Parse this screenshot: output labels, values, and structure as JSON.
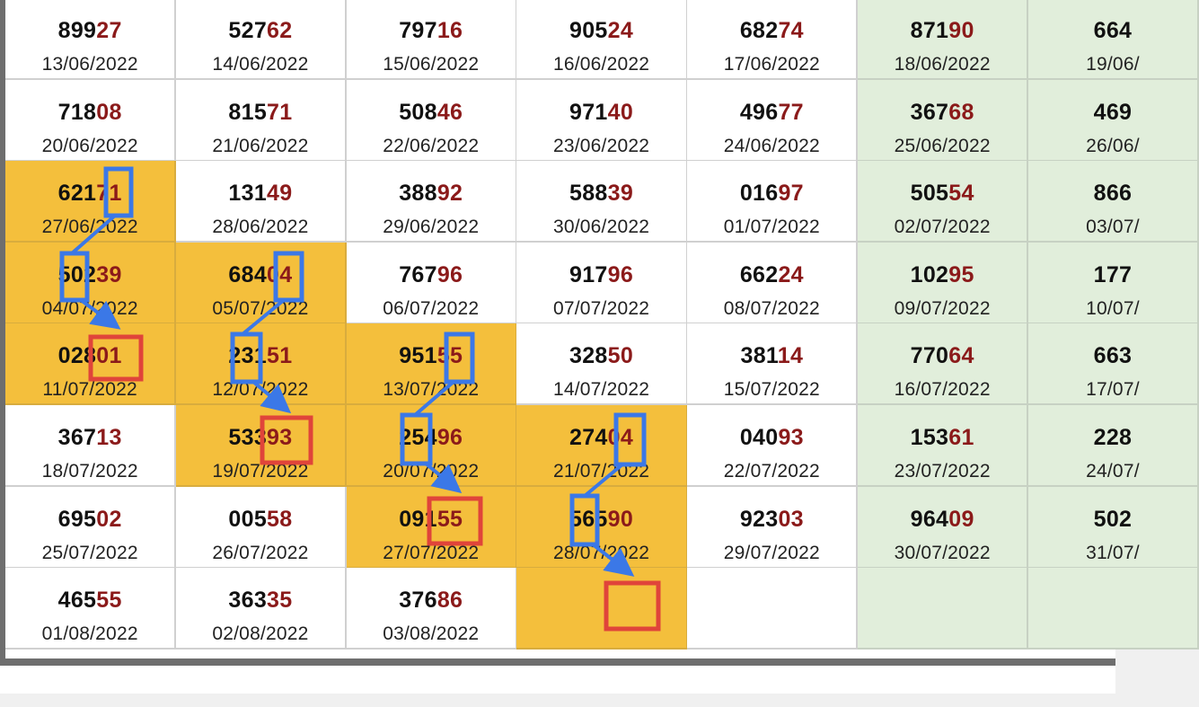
{
  "colors": {
    "highlight": "#f4bf3c",
    "weekend_column": "#e1eedb",
    "tail_digits": "#8b1a1a",
    "marker_blue": "#3b78e7",
    "marker_red": "#e0443a"
  },
  "grid": {
    "rows": [
      [
        {
          "head": "899",
          "tail": "27",
          "date": "13/06/2022",
          "hl": false
        },
        {
          "head": "527",
          "tail": "62",
          "date": "14/06/2022",
          "hl": false
        },
        {
          "head": "797",
          "tail": "16",
          "date": "15/06/2022",
          "hl": false
        },
        {
          "head": "905",
          "tail": "24",
          "date": "16/06/2022",
          "hl": false
        },
        {
          "head": "682",
          "tail": "74",
          "date": "17/06/2022",
          "hl": false
        },
        {
          "head": "871",
          "tail": "90",
          "date": "18/06/2022",
          "hl": false
        },
        {
          "head": "664",
          "tail": "",
          "date": "19/06/",
          "hl": false
        }
      ],
      [
        {
          "head": "718",
          "tail": "08",
          "date": "20/06/2022",
          "hl": false
        },
        {
          "head": "815",
          "tail": "71",
          "date": "21/06/2022",
          "hl": false
        },
        {
          "head": "508",
          "tail": "46",
          "date": "22/06/2022",
          "hl": false
        },
        {
          "head": "971",
          "tail": "40",
          "date": "23/06/2022",
          "hl": false
        },
        {
          "head": "496",
          "tail": "77",
          "date": "24/06/2022",
          "hl": false
        },
        {
          "head": "367",
          "tail": "68",
          "date": "25/06/2022",
          "hl": false
        },
        {
          "head": "469",
          "tail": "",
          "date": "26/06/",
          "hl": false
        }
      ],
      [
        {
          "head": "621",
          "tail": "71",
          "date": "27/06/2022",
          "hl": true
        },
        {
          "head": "131",
          "tail": "49",
          "date": "28/06/2022",
          "hl": false
        },
        {
          "head": "388",
          "tail": "92",
          "date": "29/06/2022",
          "hl": false
        },
        {
          "head": "588",
          "tail": "39",
          "date": "30/06/2022",
          "hl": false
        },
        {
          "head": "016",
          "tail": "97",
          "date": "01/07/2022",
          "hl": false
        },
        {
          "head": "505",
          "tail": "54",
          "date": "02/07/2022",
          "hl": false
        },
        {
          "head": "866",
          "tail": "",
          "date": "03/07/",
          "hl": false
        }
      ],
      [
        {
          "head": "502",
          "tail": "39",
          "date": "04/07/2022",
          "hl": true
        },
        {
          "head": "684",
          "tail": "04",
          "date": "05/07/2022",
          "hl": true
        },
        {
          "head": "767",
          "tail": "96",
          "date": "06/07/2022",
          "hl": false
        },
        {
          "head": "917",
          "tail": "96",
          "date": "07/07/2022",
          "hl": false
        },
        {
          "head": "662",
          "tail": "24",
          "date": "08/07/2022",
          "hl": false
        },
        {
          "head": "102",
          "tail": "95",
          "date": "09/07/2022",
          "hl": false
        },
        {
          "head": "177",
          "tail": "",
          "date": "10/07/",
          "hl": false
        }
      ],
      [
        {
          "head": "028",
          "tail": "01",
          "date": "11/07/2022",
          "hl": true
        },
        {
          "head": "231",
          "tail": "51",
          "date": "12/07/2022",
          "hl": true
        },
        {
          "head": "951",
          "tail": "55",
          "date": "13/07/2022",
          "hl": true
        },
        {
          "head": "328",
          "tail": "50",
          "date": "14/07/2022",
          "hl": false
        },
        {
          "head": "381",
          "tail": "14",
          "date": "15/07/2022",
          "hl": false
        },
        {
          "head": "770",
          "tail": "64",
          "date": "16/07/2022",
          "hl": false
        },
        {
          "head": "663",
          "tail": "",
          "date": "17/07/",
          "hl": false
        }
      ],
      [
        {
          "head": "367",
          "tail": "13",
          "date": "18/07/2022",
          "hl": false
        },
        {
          "head": "533",
          "tail": "93",
          "date": "19/07/2022",
          "hl": true
        },
        {
          "head": "254",
          "tail": "96",
          "date": "20/07/2022",
          "hl": true
        },
        {
          "head": "274",
          "tail": "04",
          "date": "21/07/2022",
          "hl": true
        },
        {
          "head": "040",
          "tail": "93",
          "date": "22/07/2022",
          "hl": false
        },
        {
          "head": "153",
          "tail": "61",
          "date": "23/07/2022",
          "hl": false
        },
        {
          "head": "228",
          "tail": "",
          "date": "24/07/",
          "hl": false
        }
      ],
      [
        {
          "head": "695",
          "tail": "02",
          "date": "25/07/2022",
          "hl": false
        },
        {
          "head": "005",
          "tail": "58",
          "date": "26/07/2022",
          "hl": false
        },
        {
          "head": "091",
          "tail": "55",
          "date": "27/07/2022",
          "hl": true
        },
        {
          "head": "565",
          "tail": "90",
          "date": "28/07/2022",
          "hl": true
        },
        {
          "head": "923",
          "tail": "03",
          "date": "29/07/2022",
          "hl": false
        },
        {
          "head": "964",
          "tail": "09",
          "date": "30/07/2022",
          "hl": false
        },
        {
          "head": "502",
          "tail": "",
          "date": "31/07/",
          "hl": false
        }
      ],
      [
        {
          "head": "465",
          "tail": "55",
          "date": "01/08/2022",
          "hl": false
        },
        {
          "head": "363",
          "tail": "35",
          "date": "02/08/2022",
          "hl": false
        },
        {
          "head": "376",
          "tail": "86",
          "date": "03/08/2022",
          "hl": false
        },
        {
          "head": "",
          "tail": "",
          "date": "",
          "hl": true
        },
        {
          "head": "",
          "tail": "",
          "date": "",
          "hl": false
        },
        {
          "head": "",
          "tail": "",
          "date": "",
          "hl": false
        },
        {
          "head": "",
          "tail": "",
          "date": "",
          "hl": false
        }
      ]
    ]
  }
}
